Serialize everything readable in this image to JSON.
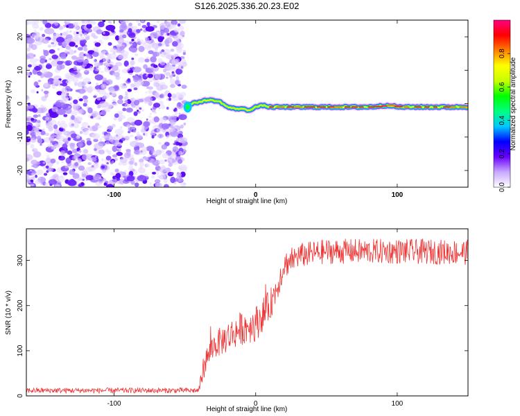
{
  "title": "S126.2025.336.20.23.E02",
  "chart_data": [
    {
      "type": "heatmap",
      "name": "spectrogram",
      "xlabel": "Height of straight line (km)",
      "ylabel": "Frequency (Hz)",
      "xlim": [
        -162,
        150
      ],
      "ylim": [
        -25,
        25
      ],
      "xticks": [
        -100,
        0,
        100
      ],
      "xtick_labels": [
        "-100",
        "0",
        "100"
      ],
      "yticks": [
        -20,
        -10,
        0,
        10,
        20
      ],
      "ytick_labels": [
        "-20",
        "-10",
        "0",
        "10",
        "20"
      ],
      "noise_region_x": [
        -162,
        -50
      ],
      "signal_start_x": -50,
      "signal_track": {
        "x": [
          -50,
          -45,
          -40,
          -35,
          -30,
          -25,
          -20,
          -15,
          -10,
          -5,
          0,
          5,
          10,
          20,
          40,
          60,
          80,
          95,
          100,
          120,
          150
        ],
        "freq": [
          -1,
          0,
          0.5,
          1,
          1,
          0.5,
          -1,
          -1.5,
          -1.5,
          -2,
          -1,
          -0.5,
          -1,
          -1,
          -1,
          -1,
          -1,
          -0.5,
          -1,
          -1,
          -1
        ]
      },
      "colorbar": {
        "label": "Normalized spectral amplitude",
        "range": [
          0,
          1
        ],
        "ticks": [
          0.0,
          0.2,
          0.4,
          0.6,
          0.8
        ],
        "tick_labels": [
          "0.0",
          "0.2",
          "0.4",
          "0.6",
          "0.8"
        ],
        "colors": [
          "#ffffff",
          "#c8a8ff",
          "#6a00ff",
          "#0000ff",
          "#00c8ff",
          "#00ff80",
          "#00ff00",
          "#c8ff00",
          "#ffff00",
          "#ff8000",
          "#ff0000",
          "#ff0080"
        ]
      }
    },
    {
      "type": "line",
      "name": "snr",
      "xlabel": "Height of straight line (km)",
      "ylabel": "SNR (10 * v/v)",
      "xlim": [
        -162,
        150
      ],
      "ylim": [
        0,
        370
      ],
      "xticks": [
        -100,
        0,
        100
      ],
      "xtick_labels": [
        "-100",
        "0",
        "100"
      ],
      "yticks": [
        0,
        100,
        200,
        300
      ],
      "ytick_labels": [
        "0",
        "100",
        "200",
        "300"
      ],
      "color": "#ee3333",
      "trend": {
        "x": [
          -162,
          -40,
          -38,
          -35,
          -30,
          -20,
          -10,
          0,
          10,
          15,
          20,
          30,
          50,
          70,
          100,
          150
        ],
        "y": [
          12,
          12,
          50,
          80,
          110,
          130,
          150,
          160,
          200,
          240,
          290,
          310,
          320,
          320,
          320,
          318
        ]
      },
      "noise_amplitude": {
        "x": [
          -162,
          -40,
          -38,
          -20,
          0,
          20,
          30,
          150
        ],
        "amp": [
          6,
          6,
          25,
          35,
          40,
          30,
          28,
          28
        ]
      }
    }
  ]
}
